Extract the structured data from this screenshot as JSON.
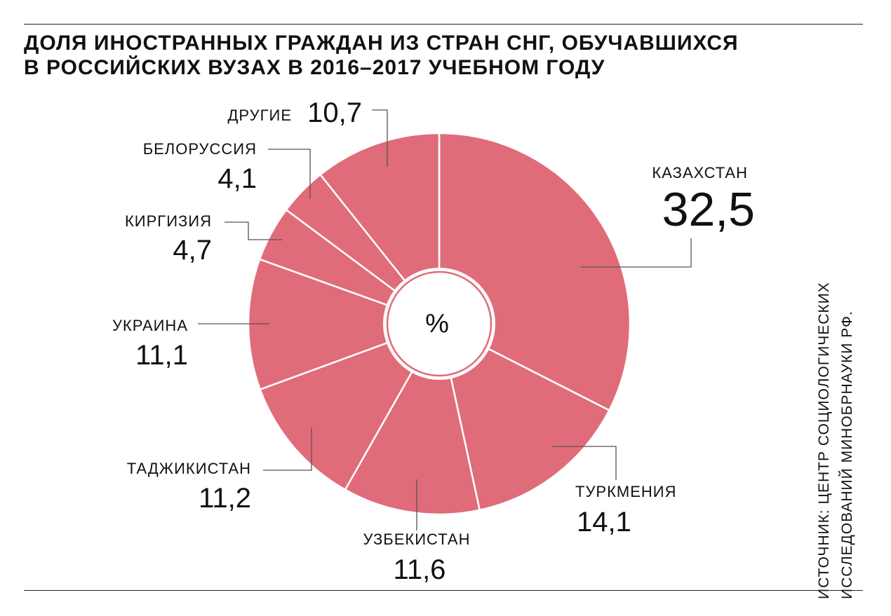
{
  "title": {
    "line1": "ДОЛЯ ИНОСТРАННЫХ ГРАЖДАН ИЗ СТРАН СНГ, ОБУЧАВШИХСЯ",
    "line2": "В РОССИЙСКИХ ВУЗАХ В 2016–2017 УЧЕБНОМ ГОДУ"
  },
  "center_label": "%",
  "source": {
    "line1": "ИСТОЧНИК: ЦЕНТР СОЦИОЛОГИЧЕСКИХ",
    "line2": "ИССЛЕДОВАНИЙ МИНОБРНАУКИ РФ."
  },
  "colors": {
    "slice": "#e06c79",
    "separator": "#ffffff",
    "leader": "#555555",
    "text": "#111111"
  },
  "chart_data": {
    "type": "pie",
    "title": "ДОЛЯ ИНОСТРАННЫХ ГРАЖДАН ИЗ СТРАН СНГ, ОБУЧАВШИХСЯ В РОССИЙСКИХ ВУЗАХ В 2016–2017 УЧЕБНОМ ГОДУ",
    "unit": "%",
    "categories": [
      "КАЗАХСТАН",
      "ТУРКМЕНИЯ",
      "УЗБЕКИСТАН",
      "ТАДЖИКИСТАН",
      "УКРАИНА",
      "КИРГИЗИЯ",
      "БЕЛОРУССИЯ",
      "ДРУГИЕ"
    ],
    "values": [
      32.5,
      14.1,
      11.6,
      11.2,
      11.1,
      4.7,
      4.1,
      10.7
    ],
    "value_labels": [
      "32,5",
      "14,1",
      "11,6",
      "11,2",
      "11,1",
      "4,7",
      "4,1",
      "10,7"
    ],
    "start": "12 o'clock, clockwise",
    "style": "donut"
  }
}
